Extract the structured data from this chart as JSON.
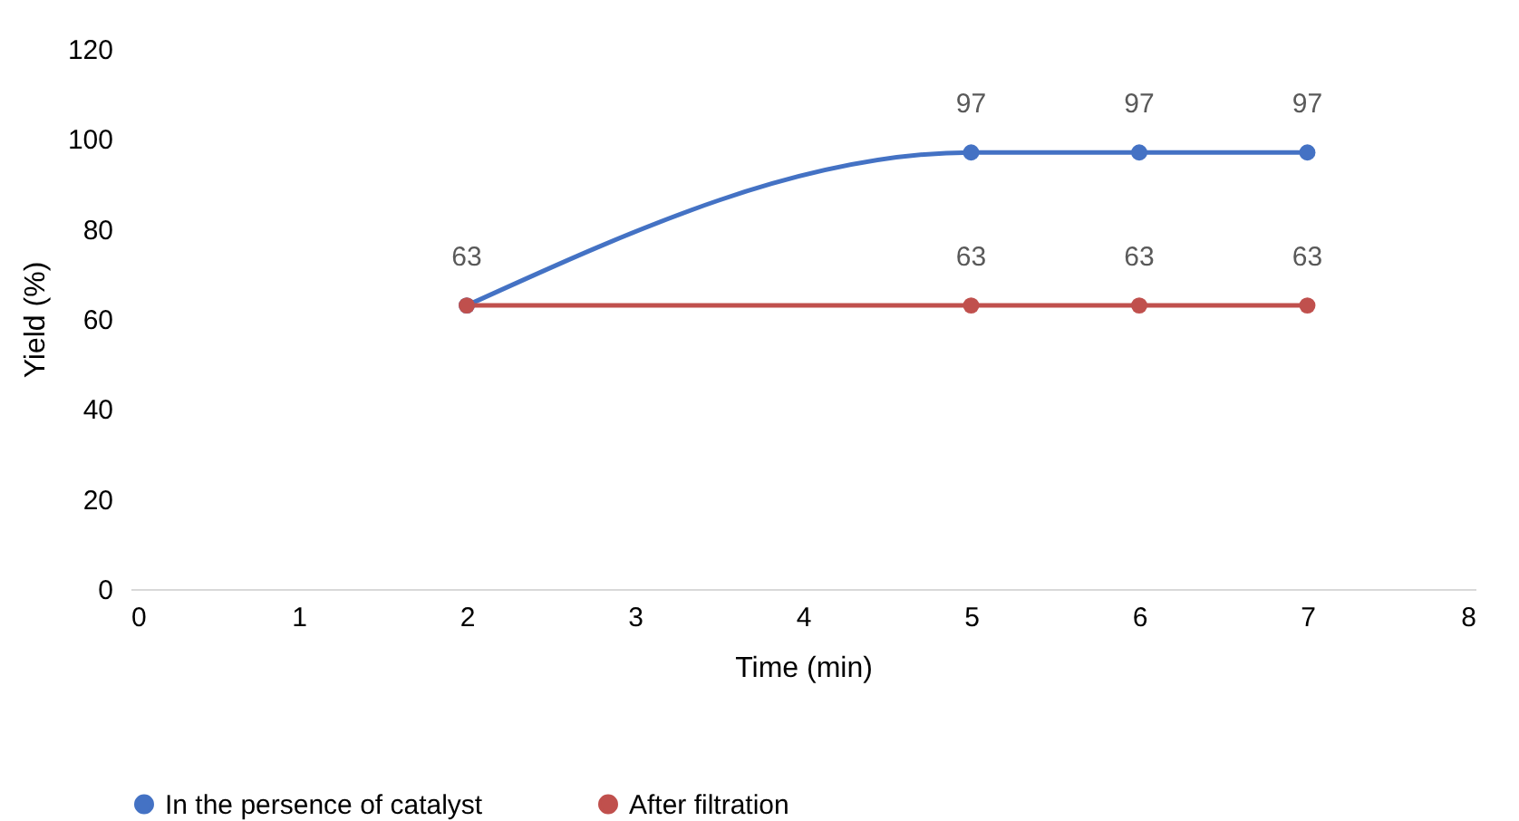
{
  "chart_data": {
    "type": "line",
    "xlabel": "Time (min)",
    "ylabel": "Yield (%)",
    "xlim": [
      0,
      8
    ],
    "xticks": [
      0,
      1,
      2,
      3,
      4,
      5,
      6,
      7,
      8
    ],
    "ylim": [
      0,
      120
    ],
    "yticks": [
      0,
      20,
      40,
      60,
      80,
      100,
      120
    ],
    "legend": "bottom",
    "marker": "circle",
    "line_style": "solid",
    "series": [
      {
        "name": "In the persence of catalyst",
        "color": "#4472c4",
        "x": [
          2,
          5,
          6,
          7
        ],
        "values": [
          63,
          97,
          97,
          97
        ],
        "value_labels": [
          null,
          "97",
          "97",
          "97"
        ]
      },
      {
        "name": "After filtration",
        "color": "#c0504d",
        "x": [
          2,
          5,
          6,
          7
        ],
        "values": [
          63,
          63,
          63,
          63
        ],
        "value_labels": [
          "63",
          "63",
          "63",
          "63"
        ]
      }
    ]
  }
}
